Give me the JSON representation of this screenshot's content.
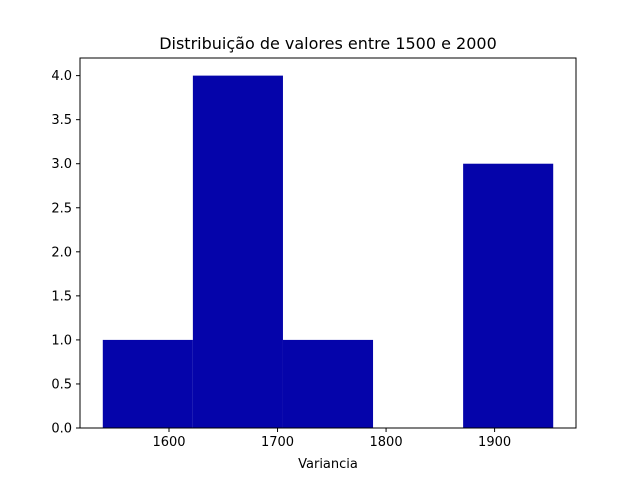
{
  "chart_data": {
    "type": "bar",
    "title": "Distribuição de valores entre 1500 e 2000",
    "xlabel": "Variancia",
    "ylabel": "",
    "bins": [
      {
        "x0": 1539,
        "x1": 1622,
        "value": 1
      },
      {
        "x0": 1622,
        "x1": 1705,
        "value": 4
      },
      {
        "x0": 1705,
        "x1": 1788,
        "value": 1
      },
      {
        "x0": 1788,
        "x1": 1871,
        "value": 0
      },
      {
        "x0": 1871,
        "x1": 1954,
        "value": 3
      }
    ],
    "xlim": [
      1518,
      1975
    ],
    "ylim": [
      0,
      4.2
    ],
    "xticks": [
      1600,
      1700,
      1800,
      1900
    ],
    "yticks": [
      0.0,
      0.5,
      1.0,
      1.5,
      2.0,
      2.5,
      3.0,
      3.5,
      4.0
    ],
    "xtick_labels": [
      "1600",
      "1700",
      "1800",
      "1900"
    ],
    "ytick_labels": [
      "0.0",
      "0.5",
      "1.0",
      "1.5",
      "2.0",
      "2.5",
      "3.0",
      "3.5",
      "4.0"
    ],
    "bar_color": "#0504aa",
    "grid": false,
    "legend": false
  }
}
